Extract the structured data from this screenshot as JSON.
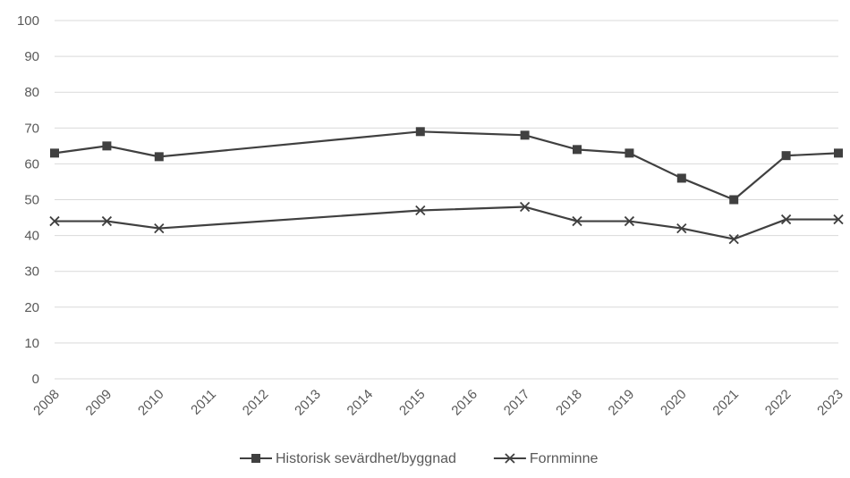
{
  "chart_data": {
    "type": "line",
    "categories": [
      "2008",
      "2009",
      "2010",
      "2011",
      "2012",
      "2013",
      "2014",
      "2015",
      "2016",
      "2017",
      "2018",
      "2019",
      "2020",
      "2021",
      "2022",
      "2023"
    ],
    "ylim": [
      0,
      100
    ],
    "yticks": [
      0,
      10,
      20,
      30,
      40,
      50,
      60,
      70,
      80,
      90,
      100
    ],
    "grid": true,
    "legend_position": "bottom",
    "series": [
      {
        "name": "Historisk sevärdhet/byggnad",
        "marker": "square",
        "color": "#404040",
        "values": [
          63,
          65,
          62,
          null,
          null,
          null,
          null,
          69,
          null,
          68,
          64,
          63,
          56,
          50,
          62.3,
          63
        ]
      },
      {
        "name": "Fornminne",
        "marker": "x",
        "color": "#404040",
        "values": [
          44,
          44,
          42,
          null,
          null,
          null,
          null,
          47,
          null,
          48,
          44,
          44,
          42,
          39,
          44.5,
          44.5
        ]
      }
    ]
  }
}
